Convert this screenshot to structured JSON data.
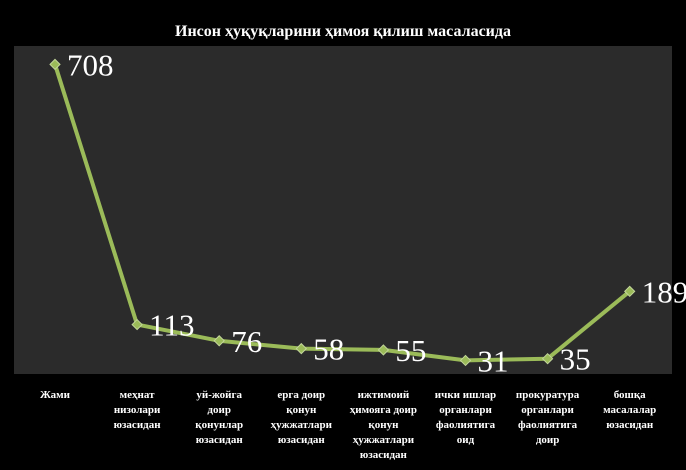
{
  "chart_data": {
    "type": "line",
    "title": "Инсон ҳуқуқларини ҳимоя қилиш масаласида",
    "xlabel": "",
    "ylabel": "",
    "ylim": [
      0,
      750
    ],
    "grid": false,
    "legend": "none",
    "categories": [
      [
        "Жами"
      ],
      [
        "меҳнат",
        "низолари",
        "юзасидан"
      ],
      [
        "уй-жойга",
        "доир",
        "қонунлар",
        "юзасидан"
      ],
      [
        "ерга доир",
        "қонун",
        "ҳужжатлари",
        "юзасидан"
      ],
      [
        "ижтимоий",
        "ҳимояга доир",
        "қонун",
        "ҳужжатлари",
        "юзасидан"
      ],
      [
        "ички ишлар",
        "органлари",
        "фаолиятига",
        "оид"
      ],
      [
        "прокуратура",
        "органлари",
        "фаолиятига",
        "доир"
      ],
      [
        "бошқа",
        "масалалар",
        "юзасидан"
      ]
    ],
    "series": [
      {
        "values": [
          708,
          113,
          76,
          58,
          55,
          31,
          35,
          189
        ]
      }
    ],
    "data_labels": [
      "708",
      "113",
      "76",
      "58",
      "55",
      "31",
      "35",
      "189"
    ]
  },
  "colors": {
    "background": "#000000",
    "plot_area": "#2b2b2b",
    "line": "#9bbb59",
    "marker": "#9bbb59",
    "marker_edge": "#c3d69b",
    "text": "#ffffff"
  }
}
